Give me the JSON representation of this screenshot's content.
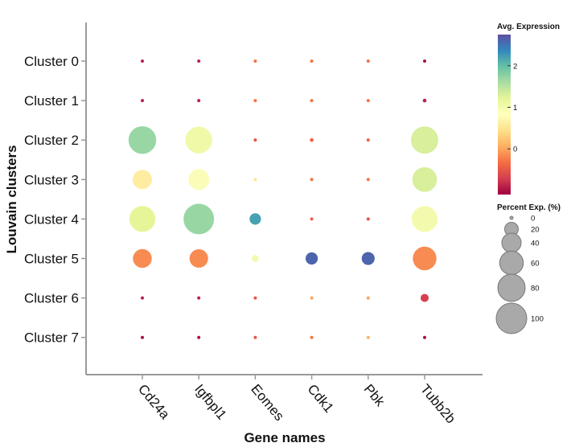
{
  "chart_data": {
    "type": "dotplot",
    "title": "",
    "xlabel": "Gene names",
    "ylabel": "Louvain clusters",
    "genes": [
      "Cd24a",
      "Igfbpl1",
      "Eomes",
      "Cdk1",
      "Pbk",
      "Tubb2b"
    ],
    "clusters": [
      "Cluster 0",
      "Cluster 1",
      "Cluster 2",
      "Cluster 3",
      "Cluster 4",
      "Cluster 5",
      "Cluster 6",
      "Cluster 7"
    ],
    "points": [
      {
        "cluster": "Cluster 0",
        "gene": "Cd24a",
        "avg_expression": -0.9,
        "percent": 0.5
      },
      {
        "cluster": "Cluster 0",
        "gene": "Igfbpl1",
        "avg_expression": -0.9,
        "percent": 0.5
      },
      {
        "cluster": "Cluster 0",
        "gene": "Eomes",
        "avg_expression": -0.3,
        "percent": 0.3
      },
      {
        "cluster": "Cluster 0",
        "gene": "Cdk1",
        "avg_expression": -0.3,
        "percent": 0.3
      },
      {
        "cluster": "Cluster 0",
        "gene": "Pbk",
        "avg_expression": -0.3,
        "percent": 0.3
      },
      {
        "cluster": "Cluster 0",
        "gene": "Tubb2b",
        "avg_expression": -1.0,
        "percent": 0.8
      },
      {
        "cluster": "Cluster 1",
        "gene": "Cd24a",
        "avg_expression": -0.9,
        "percent": 0.5
      },
      {
        "cluster": "Cluster 1",
        "gene": "Igfbpl1",
        "avg_expression": -0.9,
        "percent": 0.5
      },
      {
        "cluster": "Cluster 1",
        "gene": "Eomes",
        "avg_expression": -0.3,
        "percent": 0.3
      },
      {
        "cluster": "Cluster 1",
        "gene": "Cdk1",
        "avg_expression": -0.3,
        "percent": 0.3
      },
      {
        "cluster": "Cluster 1",
        "gene": "Pbk",
        "avg_expression": -0.3,
        "percent": 0.3
      },
      {
        "cluster": "Cluster 1",
        "gene": "Tubb2b",
        "avg_expression": -0.9,
        "percent": 1.5
      },
      {
        "cluster": "Cluster 2",
        "gene": "Cd24a",
        "avg_expression": 1.7,
        "percent": 82
      },
      {
        "cluster": "Cluster 2",
        "gene": "Igfbpl1",
        "avg_expression": 1.05,
        "percent": 77
      },
      {
        "cluster": "Cluster 2",
        "gene": "Eomes",
        "avg_expression": -0.5,
        "percent": 1.2
      },
      {
        "cluster": "Cluster 2",
        "gene": "Cdk1",
        "avg_expression": -0.4,
        "percent": 1.5
      },
      {
        "cluster": "Cluster 2",
        "gene": "Pbk",
        "avg_expression": -0.4,
        "percent": 1.2
      },
      {
        "cluster": "Cluster 2",
        "gene": "Tubb2b",
        "avg_expression": 1.3,
        "percent": 80
      },
      {
        "cluster": "Cluster 3",
        "gene": "Cd24a",
        "avg_expression": 0.6,
        "percent": 40
      },
      {
        "cluster": "Cluster 3",
        "gene": "Igfbpl1",
        "avg_expression": 0.9,
        "percent": 47
      },
      {
        "cluster": "Cluster 3",
        "gene": "Eomes",
        "avg_expression": 0.5,
        "percent": 0.8
      },
      {
        "cluster": "Cluster 3",
        "gene": "Cdk1",
        "avg_expression": -0.3,
        "percent": 0.5
      },
      {
        "cluster": "Cluster 3",
        "gene": "Pbk",
        "avg_expression": -0.3,
        "percent": 0.5
      },
      {
        "cluster": "Cluster 3",
        "gene": "Tubb2b",
        "avg_expression": 1.3,
        "percent": 65
      },
      {
        "cluster": "Cluster 4",
        "gene": "Cd24a",
        "avg_expression": 1.2,
        "percent": 72
      },
      {
        "cluster": "Cluster 4",
        "gene": "Igfbpl1",
        "avg_expression": 1.7,
        "percent": 100
      },
      {
        "cluster": "Cluster 4",
        "gene": "Eomes",
        "avg_expression": 2.2,
        "percent": 14
      },
      {
        "cluster": "Cluster 4",
        "gene": "Cdk1",
        "avg_expression": -0.4,
        "percent": 0.8
      },
      {
        "cluster": "Cluster 4",
        "gene": "Pbk",
        "avg_expression": -0.5,
        "percent": 1.2
      },
      {
        "cluster": "Cluster 4",
        "gene": "Tubb2b",
        "avg_expression": 1.0,
        "percent": 72
      },
      {
        "cluster": "Cluster 5",
        "gene": "Cd24a",
        "avg_expression": -0.15,
        "percent": 38
      },
      {
        "cluster": "Cluster 5",
        "gene": "Igfbpl1",
        "avg_expression": -0.15,
        "percent": 37
      },
      {
        "cluster": "Cluster 5",
        "gene": "Eomes",
        "avg_expression": 1.0,
        "percent": 5
      },
      {
        "cluster": "Cluster 5",
        "gene": "Cdk1",
        "avg_expression": 2.6,
        "percent": 16
      },
      {
        "cluster": "Cluster 5",
        "gene": "Pbk",
        "avg_expression": 2.6,
        "percent": 18
      },
      {
        "cluster": "Cluster 5",
        "gene": "Tubb2b",
        "avg_expression": -0.15,
        "percent": 60
      },
      {
        "cluster": "Cluster 6",
        "gene": "Cd24a",
        "avg_expression": -0.9,
        "percent": 0.5
      },
      {
        "cluster": "Cluster 6",
        "gene": "Igfbpl1",
        "avg_expression": -0.9,
        "percent": 0.8
      },
      {
        "cluster": "Cluster 6",
        "gene": "Eomes",
        "avg_expression": -0.5,
        "percent": 0.3
      },
      {
        "cluster": "Cluster 6",
        "gene": "Cdk1",
        "avg_expression": 0.0,
        "percent": 0.3
      },
      {
        "cluster": "Cluster 6",
        "gene": "Pbk",
        "avg_expression": 0.0,
        "percent": 0.3
      },
      {
        "cluster": "Cluster 6",
        "gene": "Tubb2b",
        "avg_expression": -0.7,
        "percent": 7
      },
      {
        "cluster": "Cluster 7",
        "gene": "Cd24a",
        "avg_expression": -1.0,
        "percent": 0.8
      },
      {
        "cluster": "Cluster 7",
        "gene": "Igfbpl1",
        "avg_expression": -1.0,
        "percent": 0.8
      },
      {
        "cluster": "Cluster 7",
        "gene": "Eomes",
        "avg_expression": -0.5,
        "percent": 0.3
      },
      {
        "cluster": "Cluster 7",
        "gene": "Cdk1",
        "avg_expression": -0.3,
        "percent": 0.3
      },
      {
        "cluster": "Cluster 7",
        "gene": "Pbk",
        "avg_expression": 0.1,
        "percent": 0.5
      },
      {
        "cluster": "Cluster 7",
        "gene": "Tubb2b",
        "avg_expression": -1.0,
        "percent": 0.5
      }
    ],
    "color_legend": {
      "title": "Avg. Expression",
      "min": -1.1,
      "max": 2.75,
      "ticks": [
        0,
        1,
        2
      ],
      "colormap": "Spectral",
      "colors": [
        "#9e0142",
        "#d53e4f",
        "#f46d43",
        "#fdae61",
        "#fee08b",
        "#ffffbf",
        "#e6f598",
        "#abdda4",
        "#66c2a5",
        "#3288bd",
        "#5e4fa2"
      ]
    },
    "size_legend": {
      "title": "Percent Exp. (%)",
      "values": [
        0,
        20,
        40,
        60,
        80,
        100
      ],
      "color": "#a9a9a9"
    },
    "grid": false,
    "legend_position": "right"
  }
}
